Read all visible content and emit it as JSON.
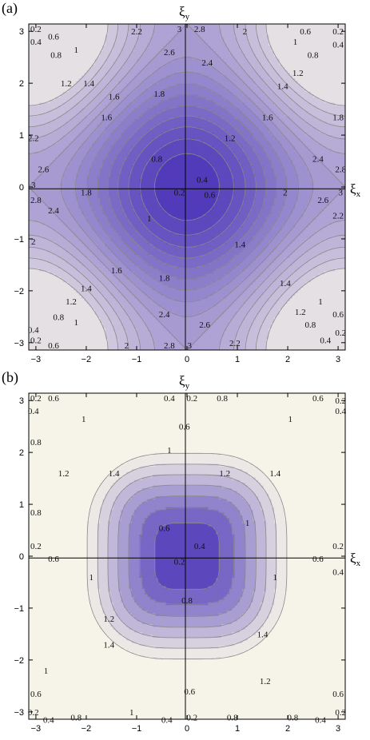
{
  "panels": [
    {
      "label": "(a)",
      "xlabel": "ξ",
      "xlabel_sub": "x",
      "ylabel": "ξ",
      "ylabel_sub": "y",
      "xtick_labels": [
        "−3",
        "−2",
        "−1",
        "0",
        "1",
        "2",
        "3"
      ],
      "ytick_labels": [
        "3",
        "2",
        "1",
        "0",
        "−1",
        "−2",
        "−3"
      ]
    },
    {
      "label": "(b)",
      "xlabel": "ξ",
      "xlabel_sub": "x",
      "ylabel": "ξ",
      "ylabel_sub": "y",
      "xtick_labels": [
        "−3",
        "−2",
        "−1",
        "0",
        "1",
        "2",
        "3"
      ],
      "ytick_labels": [
        "3",
        "2",
        "1",
        "0",
        "−1",
        "−2",
        "−3"
      ]
    }
  ],
  "chart_data": [
    {
      "type": "heatmap",
      "subtype": "contour",
      "panel": "(a)",
      "function": "2 - cos(ξx) - cos(ξy)",
      "x_range": [
        -3.14159,
        3.14159
      ],
      "y_range": [
        -3.14159,
        3.14159
      ],
      "xticks": [
        -3,
        -2,
        -1,
        0,
        1,
        2,
        3
      ],
      "yticks": [
        -3,
        -2,
        -1,
        0,
        1,
        2,
        3
      ],
      "contour_levels": [
        0.2,
        0.4,
        0.6,
        0.8,
        1,
        1.2,
        1.4,
        1.6,
        1.8,
        2,
        2.2,
        2.4,
        2.6,
        2.8,
        3
      ],
      "value_range": [
        0,
        4
      ],
      "colors": {
        "low": "#4a33b8",
        "high": "#f7f5e8",
        "line": "#888888"
      },
      "labels": [
        {
          "text": "0.2",
          "x": -3.0,
          "y": 3.05
        },
        {
          "text": "0.6",
          "x": -2.65,
          "y": 2.9
        },
        {
          "text": "0.4",
          "x": -3.0,
          "y": 2.8
        },
        {
          "text": "0.8",
          "x": -2.6,
          "y": 2.55
        },
        {
          "text": "1",
          "x": -2.2,
          "y": 2.65
        },
        {
          "text": "1.2",
          "x": -2.4,
          "y": 2.0
        },
        {
          "text": "1.4",
          "x": -1.95,
          "y": 2.0
        },
        {
          "text": "1.6",
          "x": -1.45,
          "y": 1.75
        },
        {
          "text": "2.2",
          "x": -1.0,
          "y": 3.0
        },
        {
          "text": "3",
          "x": -0.15,
          "y": 3.05
        },
        {
          "text": "2.8",
          "x": 0.25,
          "y": 3.05
        },
        {
          "text": "2",
          "x": 1.15,
          "y": 3.0
        },
        {
          "text": "2.6",
          "x": -0.35,
          "y": 2.6
        },
        {
          "text": "2.4",
          "x": 0.4,
          "y": 2.4
        },
        {
          "text": "1.8",
          "x": -0.55,
          "y": 1.8
        },
        {
          "text": "0.6",
          "x": 2.35,
          "y": 3.0
        },
        {
          "text": "0.2",
          "x": 3.0,
          "y": 3.0
        },
        {
          "text": "0.4",
          "x": 3.0,
          "y": 2.75
        },
        {
          "text": "1",
          "x": 2.15,
          "y": 2.8
        },
        {
          "text": "0.8",
          "x": 2.5,
          "y": 2.55
        },
        {
          "text": "1.2",
          "x": 2.2,
          "y": 2.2
        },
        {
          "text": "1.4",
          "x": 1.9,
          "y": 1.95
        },
        {
          "text": "1.6",
          "x": -1.6,
          "y": 1.35
        },
        {
          "text": "1.6",
          "x": 1.6,
          "y": 1.35
        },
        {
          "text": "1.8",
          "x": 3.0,
          "y": 1.35
        },
        {
          "text": "1.2",
          "x": 0.85,
          "y": 0.95
        },
        {
          "text": "0.8",
          "x": -0.6,
          "y": 0.55
        },
        {
          "text": "0.4",
          "x": 0.3,
          "y": 0.15
        },
        {
          "text": "0.2",
          "x": -0.15,
          "y": -0.1
        },
        {
          "text": "0.6",
          "x": 0.45,
          "y": -0.15
        },
        {
          "text": "1",
          "x": -0.75,
          "y": -0.6
        },
        {
          "text": "1.4",
          "x": 1.05,
          "y": -1.1
        },
        {
          "text": "2.2",
          "x": -3.05,
          "y": 0.95
        },
        {
          "text": "2.6",
          "x": -2.85,
          "y": 0.35
        },
        {
          "text": "3",
          "x": -3.05,
          "y": 0.05
        },
        {
          "text": "1.8",
          "x": -2.0,
          "y": -0.1
        },
        {
          "text": "2.8",
          "x": -3.0,
          "y": -0.25
        },
        {
          "text": "2.4",
          "x": -2.65,
          "y": -0.45
        },
        {
          "text": "2",
          "x": -3.05,
          "y": -1.05
        },
        {
          "text": "2.4",
          "x": 2.6,
          "y": 0.55
        },
        {
          "text": "2.8",
          "x": 3.05,
          "y": 0.35
        },
        {
          "text": "2",
          "x": 1.95,
          "y": -0.1
        },
        {
          "text": "2.6",
          "x": 2.7,
          "y": -0.25
        },
        {
          "text": "3",
          "x": 3.05,
          "y": -0.1
        },
        {
          "text": "2.2",
          "x": 3.0,
          "y": -0.55
        },
        {
          "text": "1.6",
          "x": -1.4,
          "y": -1.6
        },
        {
          "text": "1.8",
          "x": -0.45,
          "y": -1.75
        },
        {
          "text": "1.4",
          "x": 1.95,
          "y": -1.85
        },
        {
          "text": "1.4",
          "x": -2.0,
          "y": -1.95
        },
        {
          "text": "1.2",
          "x": -2.3,
          "y": -2.2
        },
        {
          "text": "2.4",
          "x": -0.45,
          "y": -2.45
        },
        {
          "text": "2.6",
          "x": 0.35,
          "y": -2.65
        },
        {
          "text": "1.2",
          "x": 2.25,
          "y": -2.4
        },
        {
          "text": "1",
          "x": 2.65,
          "y": -2.2
        },
        {
          "text": "0.8",
          "x": -2.55,
          "y": -2.5
        },
        {
          "text": "1",
          "x": -2.2,
          "y": -2.6
        },
        {
          "text": "0.4",
          "x": -3.05,
          "y": -2.75
        },
        {
          "text": "0.2",
          "x": -3.0,
          "y": -2.95
        },
        {
          "text": "0.6",
          "x": -2.65,
          "y": -3.05
        },
        {
          "text": "2",
          "x": -1.2,
          "y": -3.05
        },
        {
          "text": "2.8",
          "x": -0.35,
          "y": -3.05
        },
        {
          "text": "3",
          "x": 0.05,
          "y": -3.05
        },
        {
          "text": "2.2",
          "x": 0.95,
          "y": -3.0
        },
        {
          "text": "0.8",
          "x": 2.45,
          "y": -2.65
        },
        {
          "text": "0.6",
          "x": 3.0,
          "y": -2.45
        },
        {
          "text": "0.4",
          "x": 2.75,
          "y": -2.95
        },
        {
          "text": "0.2",
          "x": 3.05,
          "y": -2.8
        }
      ]
    },
    {
      "type": "heatmap",
      "subtype": "contour",
      "panel": "(b)",
      "function": "sqrt((2 - cos(ξx) - cos(ξy))^2 - 2(1 - cos(ξx))(1 - cos(ξy)))",
      "x_range": [
        -3.14159,
        3.14159
      ],
      "y_range": [
        -3.14159,
        3.14159
      ],
      "xticks": [
        -3,
        -2,
        -1,
        0,
        1,
        2,
        3
      ],
      "yticks": [
        -3,
        -2,
        -1,
        0,
        1,
        2,
        3
      ],
      "contour_levels": [
        0.2,
        0.4,
        0.6,
        0.8,
        1,
        1.2,
        1.4
      ],
      "value_range": [
        0,
        1.4142
      ],
      "colors": {
        "low": "#4a33b8",
        "high": "#f7f5e8",
        "line": "#888888"
      },
      "labels": [
        {
          "text": "0.2",
          "x": -3.0,
          "y": 3.05
        },
        {
          "text": "0.6",
          "x": -2.65,
          "y": 3.05
        },
        {
          "text": "0.4",
          "x": -3.05,
          "y": 2.8
        },
        {
          "text": "0.8",
          "x": -3.0,
          "y": 2.2
        },
        {
          "text": "1",
          "x": -2.05,
          "y": 2.65
        },
        {
          "text": "0.4",
          "x": -0.35,
          "y": 3.05
        },
        {
          "text": "0.2",
          "x": 0.1,
          "y": 3.05
        },
        {
          "text": "0.8",
          "x": 0.7,
          "y": 3.05
        },
        {
          "text": "0.6",
          "x": -0.05,
          "y": 2.5
        },
        {
          "text": "1",
          "x": -0.35,
          "y": 2.05
        },
        {
          "text": "1.2",
          "x": -2.45,
          "y": 1.6
        },
        {
          "text": "1.4",
          "x": -1.45,
          "y": 1.6
        },
        {
          "text": "1.2",
          "x": 0.75,
          "y": 1.6
        },
        {
          "text": "1.4",
          "x": 1.75,
          "y": 1.6
        },
        {
          "text": "0.8",
          "x": -3.0,
          "y": 0.85
        },
        {
          "text": "0.6",
          "x": -0.45,
          "y": 0.55
        },
        {
          "text": "1",
          "x": 1.2,
          "y": 0.65
        },
        {
          "text": "0.2",
          "x": -3.0,
          "y": 0.2
        },
        {
          "text": "0.6",
          "x": -2.65,
          "y": -0.05
        },
        {
          "text": "0.4",
          "x": 0.25,
          "y": 0.2
        },
        {
          "text": "0.2",
          "x": -0.15,
          "y": -0.1
        },
        {
          "text": "0.6",
          "x": 2.6,
          "y": -0.05
        },
        {
          "text": "0.2",
          "x": 3.0,
          "y": 0.2
        },
        {
          "text": "0.4",
          "x": 3.0,
          "y": -0.3
        },
        {
          "text": "1",
          "x": -1.9,
          "y": -0.4
        },
        {
          "text": "1",
          "x": 1.75,
          "y": -0.4
        },
        {
          "text": "0.8",
          "x": 0.0,
          "y": -0.85
        },
        {
          "text": "1.2",
          "x": -1.55,
          "y": -1.2
        },
        {
          "text": "1.4",
          "x": -1.55,
          "y": -1.7
        },
        {
          "text": "1.4",
          "x": 1.5,
          "y": -1.5
        },
        {
          "text": "1",
          "x": -2.8,
          "y": -2.2
        },
        {
          "text": "1.2",
          "x": 1.55,
          "y": -2.4
        },
        {
          "text": "0.6",
          "x": -3.0,
          "y": -2.65
        },
        {
          "text": "0.6",
          "x": 0.05,
          "y": -2.6
        },
        {
          "text": "1",
          "x": -1.1,
          "y": -3.0
        },
        {
          "text": "0.2",
          "x": -3.05,
          "y": -3.0
        },
        {
          "text": "0.4",
          "x": -2.75,
          "y": -3.15
        },
        {
          "text": "0.8",
          "x": -2.2,
          "y": -3.1
        },
        {
          "text": "0.4",
          "x": -0.4,
          "y": -3.15
        },
        {
          "text": "0.2",
          "x": 0.1,
          "y": -3.1
        },
        {
          "text": "0.8",
          "x": 0.9,
          "y": -3.1
        },
        {
          "text": "0.8",
          "x": 2.1,
          "y": -3.1
        },
        {
          "text": "0.4",
          "x": 2.65,
          "y": -3.15
        },
        {
          "text": "0.6",
          "x": 3.0,
          "y": -2.65
        },
        {
          "text": "0.2",
          "x": 3.05,
          "y": -3.0
        },
        {
          "text": "1",
          "x": 2.05,
          "y": 2.65
        },
        {
          "text": "0.6",
          "x": 2.6,
          "y": 3.05
        },
        {
          "text": "0.2",
          "x": 3.05,
          "y": 3.0
        },
        {
          "text": "0.4",
          "x": 3.05,
          "y": 2.8
        }
      ]
    }
  ]
}
